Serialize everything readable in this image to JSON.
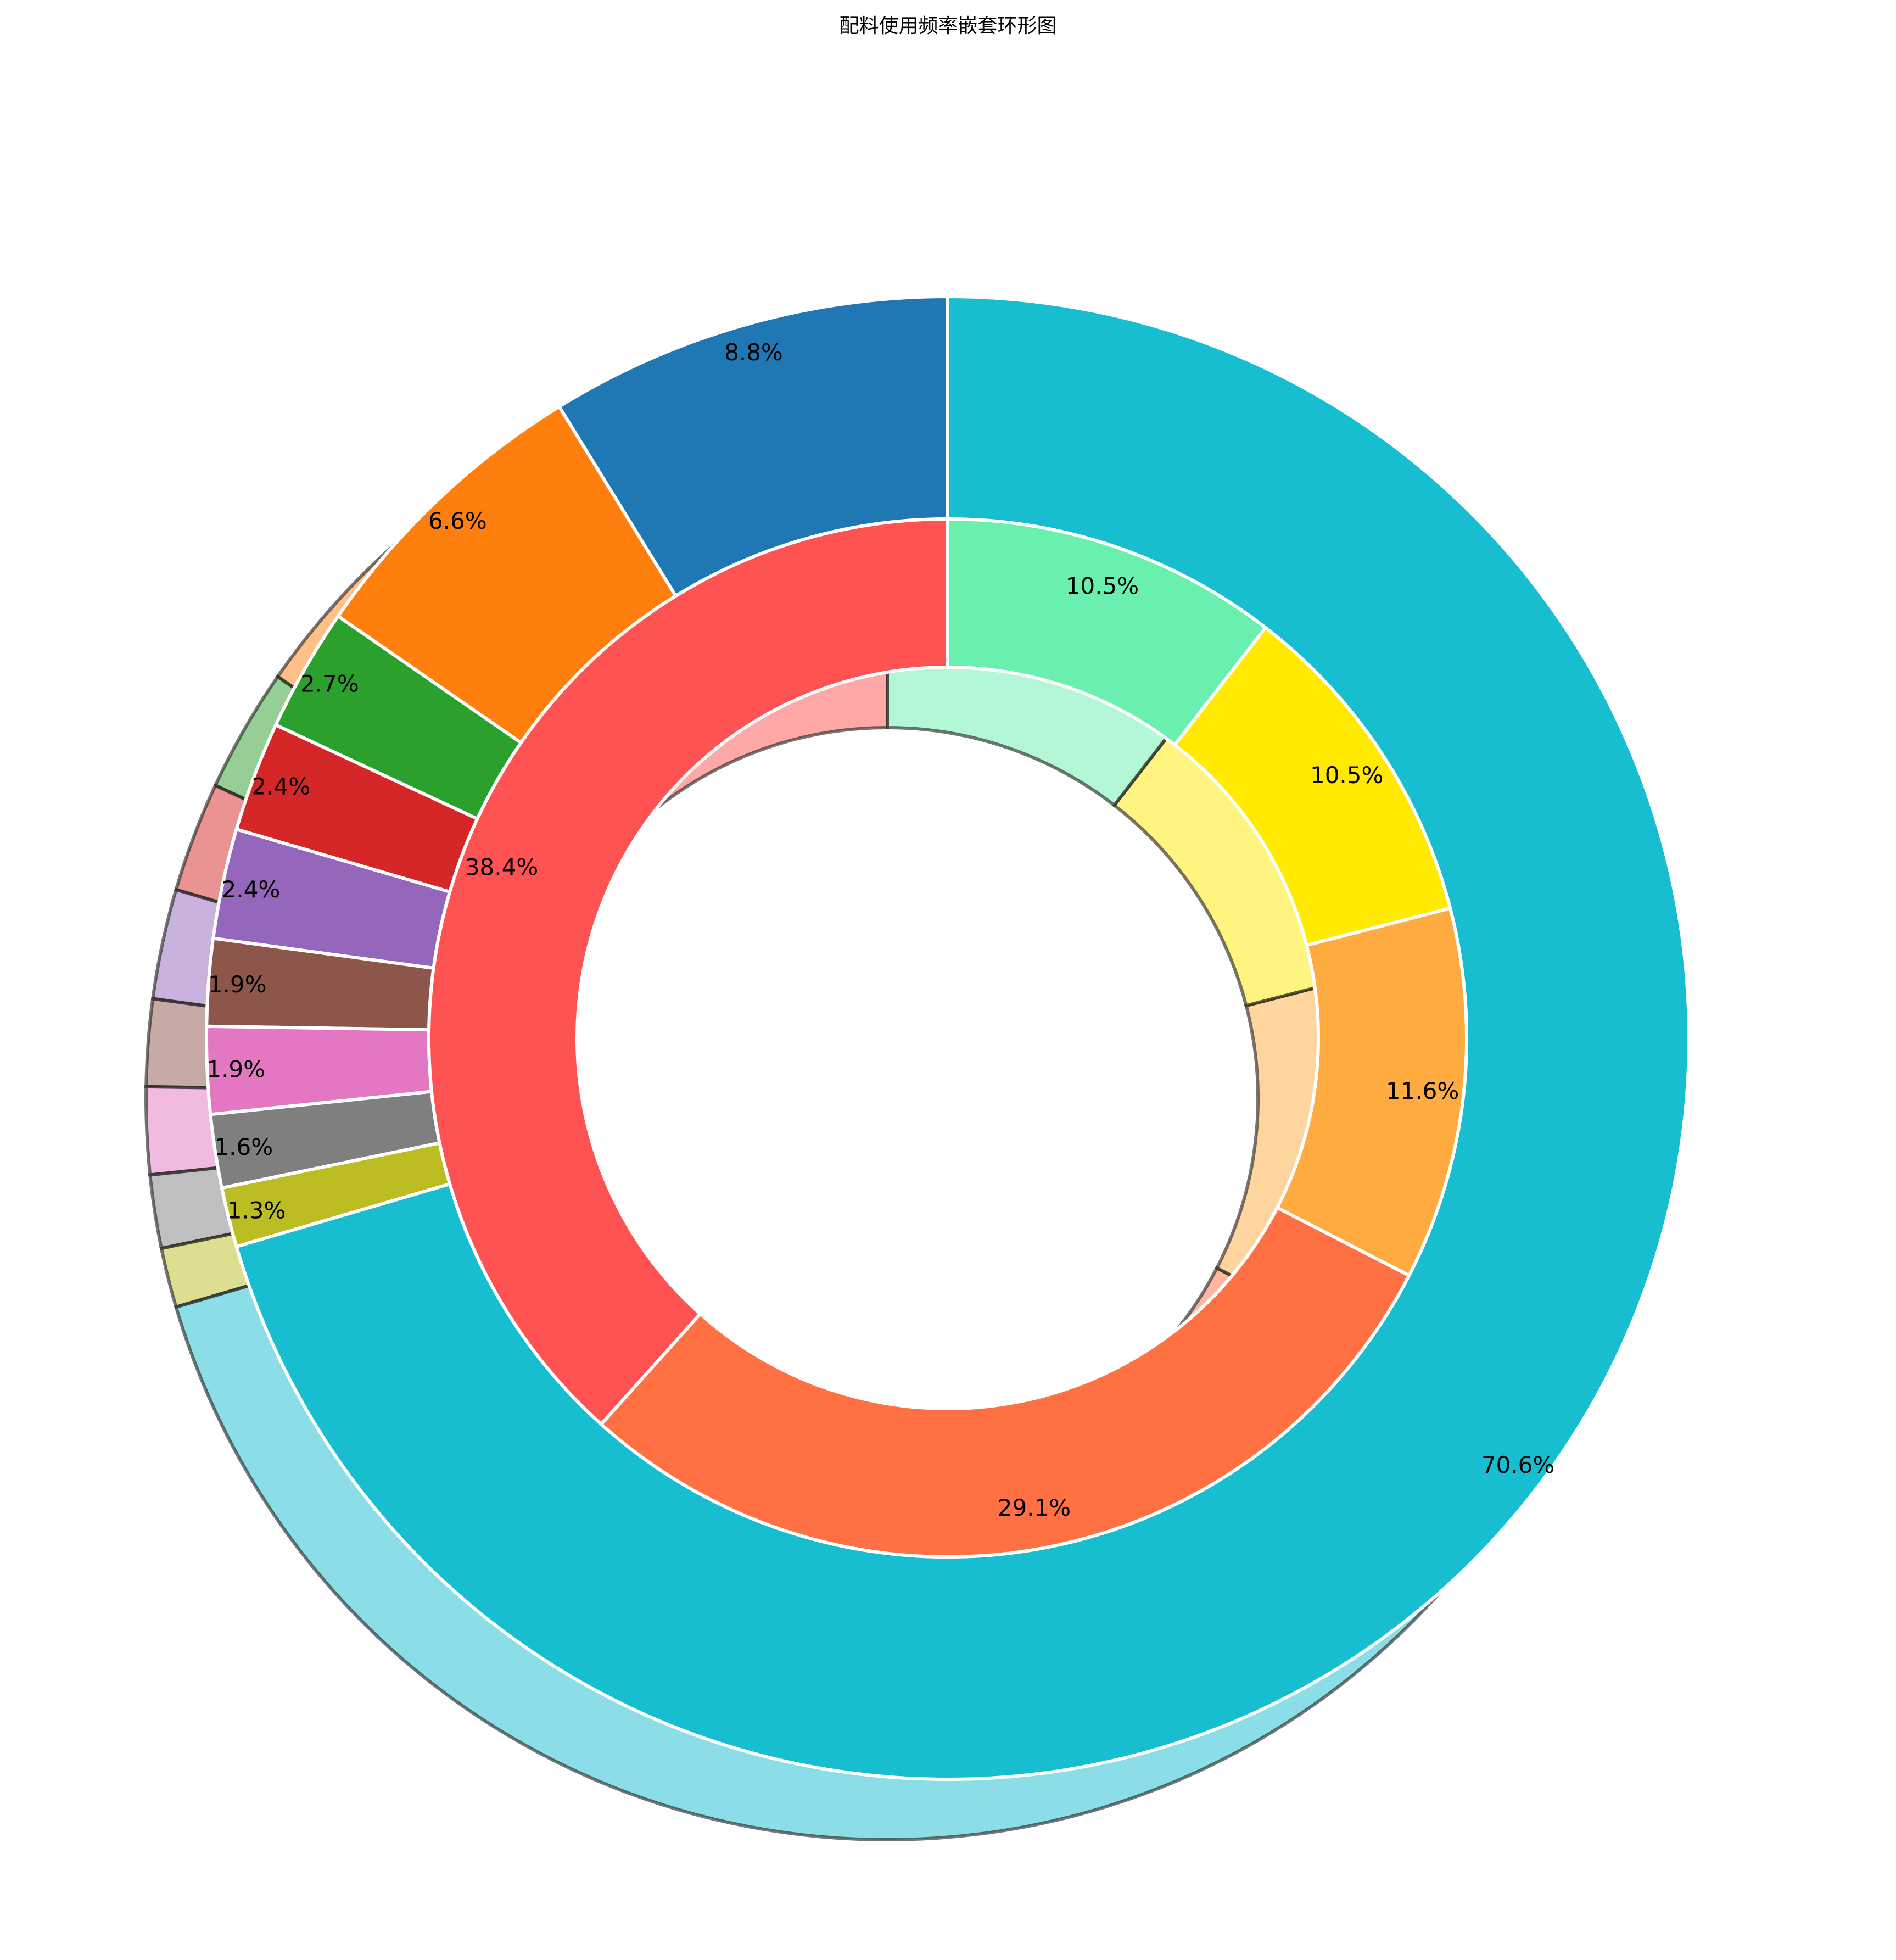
{
  "chart_data": [
    {
      "type": "pie",
      "ring": "outer",
      "title": "配料使用频率嵌套环形图",
      "start_angle_deg": 90,
      "direction": "counterclockwise",
      "slices": [
        {
          "label": "8.8%",
          "value": 8.8,
          "color": "#1f77b4"
        },
        {
          "label": "6.6%",
          "value": 6.6,
          "color": "#ff7f0e"
        },
        {
          "label": "2.7%",
          "value": 2.7,
          "color": "#2ca02c"
        },
        {
          "label": "2.4%",
          "value": 2.4,
          "color": "#d62728"
        },
        {
          "label": "2.4%",
          "value": 2.4,
          "color": "#9467bd"
        },
        {
          "label": "1.9%",
          "value": 1.9,
          "color": "#8c564b"
        },
        {
          "label": "1.9%",
          "value": 1.9,
          "color": "#e377c2"
        },
        {
          "label": "1.6%",
          "value": 1.6,
          "color": "#7f7f7f"
        },
        {
          "label": "1.3%",
          "value": 1.3,
          "color": "#bcbd22"
        },
        {
          "label": "70.6%",
          "value": 70.6,
          "color": "#17becf"
        }
      ]
    },
    {
      "type": "pie",
      "ring": "inner",
      "start_angle_deg": 90,
      "direction": "counterclockwise",
      "slices": [
        {
          "label": "38.4%",
          "value": 38.4,
          "color": "#ff5252"
        },
        {
          "label": "29.1%",
          "value": 29.1,
          "color": "#ff7043"
        },
        {
          "label": "11.6%",
          "value": 11.6,
          "color": "#ffab40"
        },
        {
          "label": "10.5%",
          "value": 10.5,
          "color": "#ffea00"
        },
        {
          "label": "10.5%",
          "value": 10.5,
          "color": "#69f0ae"
        }
      ]
    }
  ]
}
